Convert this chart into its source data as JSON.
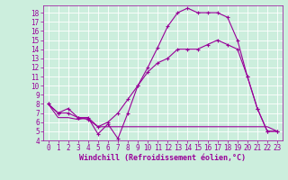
{
  "xlabel": "Windchill (Refroidissement éolien,°C)",
  "ylabel": "",
  "bg_color": "#cceedd",
  "line_color": "#990099",
  "xlim": [
    -0.5,
    23.5
  ],
  "ylim": [
    4,
    18.8
  ],
  "xticks": [
    0,
    1,
    2,
    3,
    4,
    5,
    6,
    7,
    8,
    9,
    10,
    11,
    12,
    13,
    14,
    15,
    16,
    17,
    18,
    19,
    20,
    21,
    22,
    23
  ],
  "yticks": [
    4,
    5,
    6,
    7,
    8,
    9,
    10,
    11,
    12,
    13,
    14,
    15,
    16,
    17,
    18
  ],
  "series1_x": [
    0,
    1,
    2,
    3,
    4,
    5,
    6,
    7,
    8,
    9,
    10,
    11,
    12,
    13,
    14,
    15,
    16,
    17,
    18,
    19,
    20,
    21,
    22,
    23
  ],
  "series1_y": [
    8.0,
    7.0,
    7.0,
    6.5,
    6.5,
    4.7,
    5.8,
    4.2,
    7.0,
    10.0,
    12.0,
    14.2,
    16.5,
    18.0,
    18.5,
    18.0,
    18.0,
    18.0,
    17.5,
    15.0,
    11.0,
    7.5,
    5.0,
    5.0
  ],
  "series2_x": [
    0,
    1,
    2,
    3,
    4,
    5,
    6,
    7,
    8,
    9,
    10,
    11,
    12,
    13,
    14,
    15,
    16,
    17,
    18,
    19,
    20,
    21,
    22,
    23
  ],
  "series2_y": [
    8.0,
    6.5,
    6.5,
    6.3,
    6.5,
    5.5,
    5.5,
    5.5,
    5.5,
    5.5,
    5.5,
    5.5,
    5.5,
    5.5,
    5.5,
    5.5,
    5.5,
    5.5,
    5.5,
    5.5,
    5.5,
    5.5,
    5.5,
    5.0
  ],
  "series3_x": [
    0,
    1,
    2,
    3,
    4,
    5,
    6,
    7,
    8,
    9,
    10,
    11,
    12,
    13,
    14,
    15,
    16,
    17,
    18,
    19,
    20,
    21,
    22,
    23
  ],
  "series3_y": [
    8.0,
    7.0,
    7.5,
    6.5,
    6.3,
    5.5,
    6.0,
    7.0,
    8.5,
    10.0,
    11.5,
    12.5,
    13.0,
    14.0,
    14.0,
    14.0,
    14.5,
    15.0,
    14.5,
    14.0,
    11.0,
    7.5,
    5.0,
    5.0
  ]
}
